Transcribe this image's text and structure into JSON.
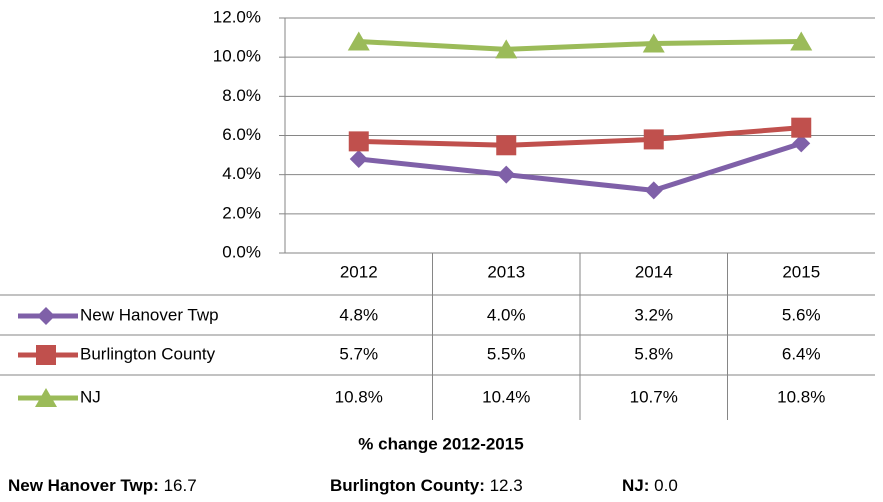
{
  "chart_data": {
    "type": "line",
    "categories": [
      "2012",
      "2013",
      "2014",
      "2015"
    ],
    "series": [
      {
        "name": "New Hanover Twp",
        "color": "#7f60a8",
        "marker": "diamond",
        "values": [
          4.8,
          4.0,
          3.2,
          5.6
        ],
        "value_labels": [
          "4.8%",
          "4.0%",
          "3.2%",
          "5.6%"
        ]
      },
      {
        "name": "Burlington County",
        "color": "#c0504d",
        "marker": "square",
        "values": [
          5.7,
          5.5,
          5.8,
          6.4
        ],
        "value_labels": [
          "5.7%",
          "5.5%",
          "5.8%",
          "6.4%"
        ]
      },
      {
        "name": "NJ",
        "color": "#9bbb59",
        "marker": "triangle",
        "values": [
          10.8,
          10.4,
          10.7,
          10.8
        ],
        "value_labels": [
          "10.8%",
          "10.4%",
          "10.7%",
          "10.8%"
        ]
      }
    ],
    "ylim": [
      0,
      12
    ],
    "yticks": [
      {
        "value": 0,
        "label": "0.0%"
      },
      {
        "value": 2,
        "label": "2.0%"
      },
      {
        "value": 4,
        "label": "4.0%"
      },
      {
        "value": 6,
        "label": "6.0%"
      },
      {
        "value": 8,
        "label": "8.0%"
      },
      {
        "value": 10,
        "label": "10.0%"
      },
      {
        "value": 12,
        "label": "12.0%"
      }
    ],
    "grid": true
  },
  "footer": {
    "title": "% change 2012-2015",
    "items": [
      {
        "label": "New Hanover Twp:",
        "value": "16.7"
      },
      {
        "label": "Burlington County:",
        "value": "12.3"
      },
      {
        "label": "NJ:",
        "value": "0.0"
      }
    ]
  }
}
